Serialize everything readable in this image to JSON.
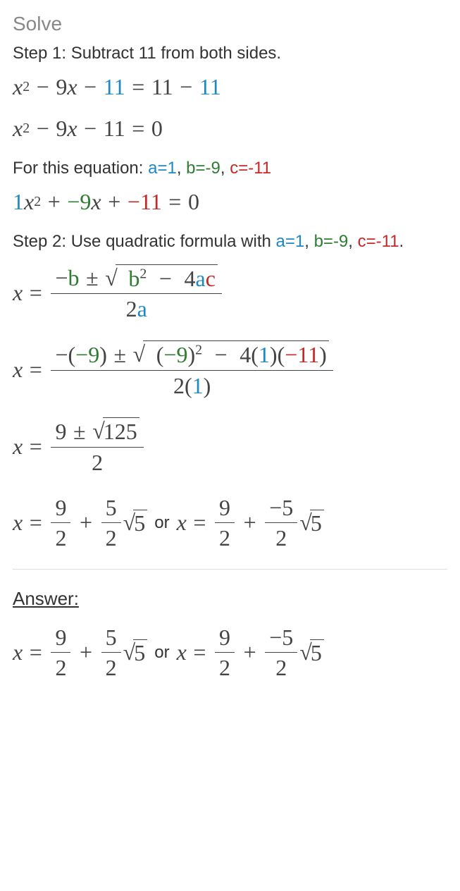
{
  "colors": {
    "text": "#333333",
    "muted": "#888888",
    "a": "#1e88c7",
    "b": "#2e7d32",
    "c": "#c62828",
    "math": "#444444"
  },
  "fontsizes": {
    "heading": 28,
    "body": 24,
    "math": 32
  },
  "heading": "Solve",
  "step1": "Step 1: Subtract 11 from both sides.",
  "step2_pre": "Step 2: Use quadratic formula with ",
  "for_eq_pre": "For this equation: ",
  "a_label": "a=1",
  "b_label": "b=-9",
  "c_label": "c=-11",
  "comma": ", ",
  "period": ".",
  "answer": "Answer:",
  "or": "or",
  "x": "x",
  "b": "b",
  "a": "a",
  "c": "c",
  "eq": "=",
  "plus": "+",
  "minus": "−",
  "pm": "±",
  "n0": "0",
  "n1": "1",
  "n2": "2",
  "n4": "4",
  "n5": "5",
  "n9": "9",
  "n11": "11",
  "n125": "125",
  "m9": "−9",
  "m11": "−11",
  "m5": "−5",
  "mb": "−b",
  "op_paren": "(",
  "cl_paren": ")",
  "mopen": "−(",
  "sqrt": "√"
}
